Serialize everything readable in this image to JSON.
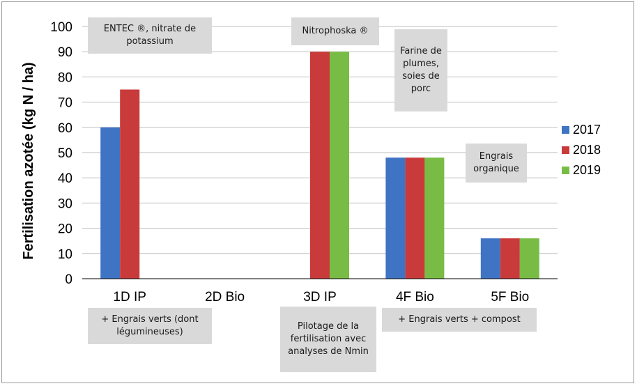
{
  "chart_data": {
    "type": "bar",
    "categories": [
      "1D IP",
      "2D Bio",
      "3D IP",
      "4F Bio",
      "5F Bio"
    ],
    "series": [
      {
        "name": "2017",
        "values": [
          60,
          0,
          0,
          48,
          16
        ],
        "color": "#3f74c4"
      },
      {
        "name": "2018",
        "values": [
          75,
          0,
          90,
          48,
          16
        ],
        "color": "#c93a3a"
      },
      {
        "name": "2019",
        "values": [
          0,
          0,
          90,
          48,
          16
        ],
        "color": "#79bc45"
      }
    ],
    "ylabel": "Fertilisation azotée (kg N / ha)",
    "ylim": [
      0,
      100
    ],
    "yticks": [
      0,
      10,
      20,
      30,
      40,
      50,
      60,
      70,
      80,
      90,
      100
    ],
    "grid": true,
    "legend_position": "right",
    "annotations": {
      "entec": "ENTEC ®, nitrate de potassium",
      "nitrophoska": "Nitrophoska ®",
      "farine": "Farine de plumes, soies de porc",
      "engrais_organique": "Engrais organique",
      "engrais_verts_legumineuses": "+ Engrais verts (dont légumineuses)",
      "pilotage": "Pilotage de la fertilisation avec analyses de Nmin",
      "engrais_verts_compost": "+ Engrais verts + compost"
    }
  }
}
